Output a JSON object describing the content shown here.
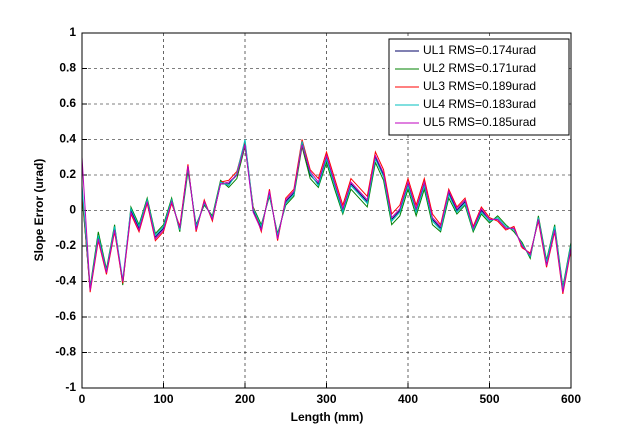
{
  "chart_data": {
    "type": "line",
    "xlabel": "Length (mm)",
    "ylabel": "Slope Error (urad)",
    "x": [
      0,
      10,
      20,
      30,
      40,
      50,
      60,
      70,
      80,
      90,
      100,
      110,
      120,
      130,
      140,
      150,
      160,
      170,
      180,
      190,
      200,
      210,
      220,
      230,
      240,
      250,
      260,
      270,
      280,
      290,
      300,
      310,
      320,
      330,
      340,
      350,
      360,
      370,
      380,
      390,
      400,
      410,
      420,
      430,
      440,
      450,
      460,
      470,
      480,
      490,
      500,
      510,
      520,
      530,
      540,
      550,
      560,
      570,
      580,
      590,
      600
    ],
    "series": [
      {
        "name": "UL1 RMS=0.174urad",
        "color": "#000066",
        "values": [
          0.1,
          -0.45,
          -0.15,
          -0.35,
          -0.1,
          -0.4,
          0.0,
          -0.1,
          0.05,
          -0.15,
          -0.1,
          0.05,
          -0.1,
          0.25,
          -0.1,
          0.05,
          -0.05,
          0.15,
          0.15,
          0.2,
          0.38,
          0.0,
          -0.1,
          0.1,
          -0.15,
          0.05,
          0.1,
          0.38,
          0.2,
          0.15,
          0.3,
          0.15,
          0.0,
          0.15,
          0.1,
          0.05,
          0.3,
          0.2,
          -0.05,
          0.0,
          0.15,
          0.0,
          0.15,
          -0.05,
          -0.1,
          0.1,
          0.0,
          0.05,
          -0.1,
          0.0,
          -0.05,
          -0.05,
          -0.1,
          -0.1,
          -0.2,
          -0.25,
          -0.05,
          -0.3,
          -0.1,
          -0.45,
          -0.2
        ]
      },
      {
        "name": "UL2 RMS=0.171urad",
        "color": "#008000",
        "values": [
          0.08,
          -0.43,
          -0.12,
          -0.33,
          -0.08,
          -0.42,
          0.02,
          -0.08,
          0.07,
          -0.13,
          -0.08,
          0.07,
          -0.12,
          0.22,
          -0.08,
          0.03,
          -0.03,
          0.17,
          0.13,
          0.18,
          0.36,
          0.02,
          -0.08,
          0.08,
          -0.13,
          0.03,
          0.08,
          0.36,
          0.18,
          0.13,
          0.27,
          0.12,
          -0.02,
          0.12,
          0.07,
          0.02,
          0.27,
          0.17,
          -0.08,
          -0.03,
          0.12,
          -0.03,
          0.12,
          -0.08,
          -0.12,
          0.07,
          -0.02,
          0.03,
          -0.12,
          -0.02,
          -0.07,
          -0.03,
          -0.08,
          -0.12,
          -0.18,
          -0.27,
          -0.03,
          -0.28,
          -0.08,
          -0.43,
          -0.18
        ]
      },
      {
        "name": "UL3 RMS=0.189urad",
        "color": "#ff0000",
        "values": [
          0.12,
          -0.46,
          -0.17,
          -0.36,
          -0.12,
          -0.41,
          -0.02,
          -0.12,
          0.04,
          -0.17,
          -0.12,
          0.04,
          -0.09,
          0.26,
          -0.12,
          0.06,
          -0.06,
          0.16,
          0.17,
          0.22,
          0.39,
          0.02,
          -0.12,
          0.12,
          -0.17,
          0.07,
          0.12,
          0.4,
          0.23,
          0.18,
          0.33,
          0.18,
          0.03,
          0.18,
          0.13,
          0.08,
          0.33,
          0.23,
          -0.02,
          0.03,
          0.18,
          0.03,
          0.18,
          -0.02,
          -0.08,
          0.12,
          0.02,
          0.07,
          -0.09,
          0.02,
          -0.04,
          -0.06,
          -0.11,
          -0.09,
          -0.21,
          -0.24,
          -0.06,
          -0.32,
          -0.12,
          -0.47,
          -0.22
        ]
      },
      {
        "name": "UL4 RMS=0.183urad",
        "color": "#00bfbf",
        "values": [
          0.14,
          -0.44,
          -0.14,
          -0.34,
          -0.09,
          -0.39,
          0.01,
          -0.09,
          0.06,
          -0.14,
          -0.09,
          0.06,
          -0.11,
          0.24,
          -0.09,
          0.04,
          -0.04,
          0.16,
          0.14,
          0.21,
          0.4,
          0.01,
          -0.09,
          0.09,
          -0.14,
          0.04,
          0.09,
          0.39,
          0.21,
          0.14,
          0.29,
          0.14,
          -0.01,
          0.14,
          0.09,
          0.04,
          0.29,
          0.19,
          -0.06,
          -0.01,
          0.14,
          -0.01,
          0.14,
          -0.06,
          -0.11,
          0.09,
          -0.01,
          0.04,
          -0.11,
          -0.01,
          -0.06,
          -0.04,
          -0.09,
          -0.11,
          -0.19,
          -0.26,
          -0.04,
          -0.29,
          -0.09,
          -0.44,
          -0.19
        ]
      },
      {
        "name": "UL5 RMS=0.185urad",
        "color": "#bf00bf",
        "values": [
          0.3,
          -0.45,
          -0.16,
          -0.35,
          -0.11,
          -0.4,
          -0.01,
          -0.11,
          0.05,
          -0.16,
          -0.11,
          0.05,
          -0.1,
          0.25,
          -0.11,
          0.05,
          -0.05,
          0.15,
          0.16,
          0.2,
          0.37,
          -0.01,
          -0.11,
          0.11,
          -0.16,
          0.06,
          0.11,
          0.37,
          0.22,
          0.16,
          0.31,
          0.16,
          0.01,
          0.16,
          0.11,
          0.06,
          0.31,
          0.21,
          -0.04,
          0.01,
          0.16,
          0.01,
          0.16,
          -0.04,
          -0.09,
          0.11,
          0.01,
          0.06,
          -0.1,
          0.01,
          -0.05,
          -0.05,
          -0.1,
          -0.1,
          -0.2,
          -0.25,
          -0.05,
          -0.31,
          -0.11,
          -0.46,
          -0.21
        ]
      }
    ],
    "xlim": [
      0,
      600
    ],
    "xticks": [
      0,
      100,
      200,
      300,
      400,
      500,
      600
    ],
    "ylim": [
      -1,
      1
    ],
    "yticks": [
      -1,
      -0.8,
      -0.6,
      -0.4,
      -0.2,
      0,
      0.2,
      0.4,
      0.6,
      0.8,
      1
    ],
    "grid": true,
    "legend": "northeast"
  }
}
